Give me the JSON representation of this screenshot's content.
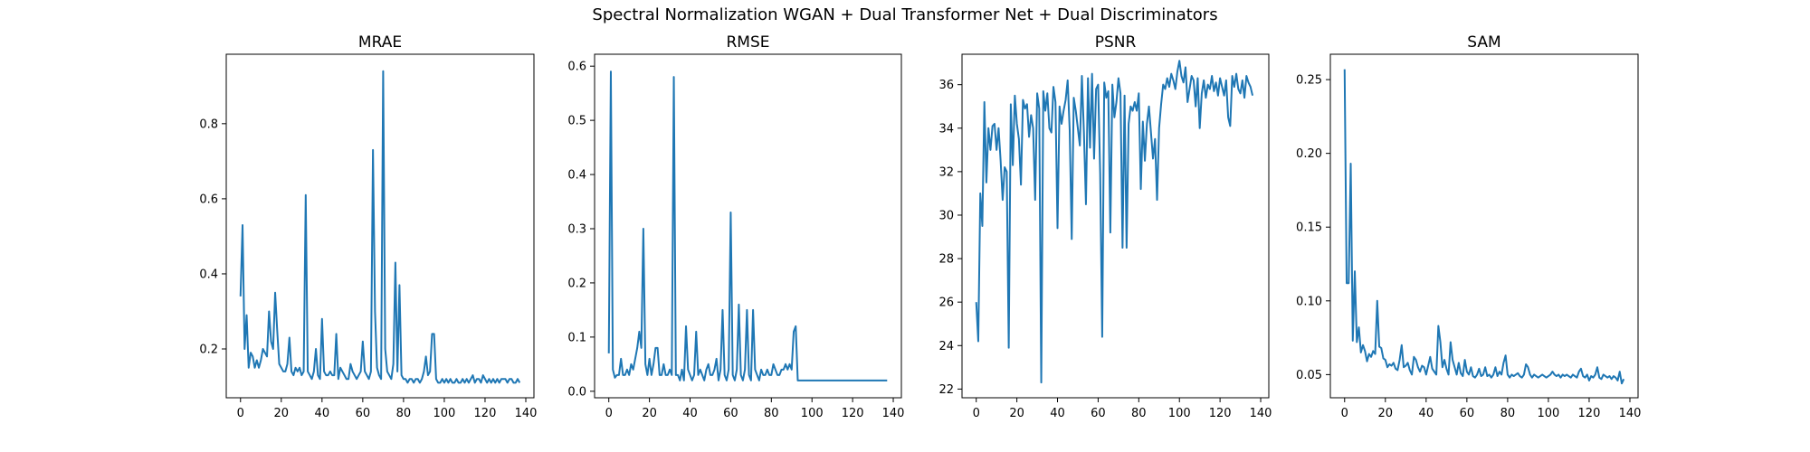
{
  "figure": {
    "title": "Spectral Normalization WGAN + Dual Transformer Net + Dual Discriminators",
    "line_color": "#1f77b4"
  },
  "chart_data": [
    {
      "type": "line",
      "title": "MRAE",
      "xlabel": "",
      "ylabel": "",
      "xlim": [
        -7,
        144
      ],
      "ylim": [
        0.07,
        0.985
      ],
      "x_ticks": [
        0,
        20,
        40,
        60,
        80,
        100,
        120,
        140
      ],
      "y_ticks": [
        0.2,
        0.4,
        0.6,
        0.8
      ],
      "x_tick_labels": [
        "0",
        "20",
        "40",
        "60",
        "80",
        "100",
        "120",
        "140"
      ],
      "y_tick_labels": [
        "0.2",
        "0.4",
        "0.6",
        "0.8"
      ],
      "grid": false,
      "series": [
        {
          "x_start": 0,
          "values": [
            0.34,
            0.53,
            0.2,
            0.29,
            0.15,
            0.19,
            0.18,
            0.15,
            0.17,
            0.15,
            0.17,
            0.2,
            0.19,
            0.18,
            0.3,
            0.22,
            0.2,
            0.35,
            0.25,
            0.16,
            0.15,
            0.14,
            0.14,
            0.16,
            0.23,
            0.14,
            0.13,
            0.15,
            0.14,
            0.15,
            0.13,
            0.14,
            0.61,
            0.14,
            0.13,
            0.12,
            0.14,
            0.2,
            0.13,
            0.12,
            0.28,
            0.14,
            0.13,
            0.13,
            0.14,
            0.13,
            0.13,
            0.24,
            0.12,
            0.15,
            0.14,
            0.13,
            0.12,
            0.12,
            0.16,
            0.14,
            0.13,
            0.12,
            0.13,
            0.14,
            0.22,
            0.14,
            0.13,
            0.12,
            0.14,
            0.73,
            0.3,
            0.15,
            0.13,
            0.12,
            0.94,
            0.2,
            0.14,
            0.13,
            0.12,
            0.16,
            0.43,
            0.14,
            0.37,
            0.13,
            0.12,
            0.12,
            0.11,
            0.12,
            0.12,
            0.11,
            0.12,
            0.12,
            0.11,
            0.12,
            0.14,
            0.18,
            0.13,
            0.14,
            0.24,
            0.24,
            0.12,
            0.11,
            0.11,
            0.12,
            0.11,
            0.12,
            0.11,
            0.12,
            0.11,
            0.11,
            0.12,
            0.11,
            0.11,
            0.12,
            0.11,
            0.12,
            0.11,
            0.12,
            0.13,
            0.11,
            0.12,
            0.12,
            0.11,
            0.13,
            0.12,
            0.11,
            0.12,
            0.11,
            0.12,
            0.11,
            0.12,
            0.11,
            0.12,
            0.12,
            0.12,
            0.11,
            0.12,
            0.12,
            0.11,
            0.11,
            0.12,
            0.11
          ]
        }
      ]
    },
    {
      "type": "line",
      "title": "RMSE",
      "xlabel": "",
      "ylabel": "",
      "xlim": [
        -7,
        144
      ],
      "ylim": [
        -0.012,
        0.622
      ],
      "x_ticks": [
        0,
        20,
        40,
        60,
        80,
        100,
        120,
        140
      ],
      "y_ticks": [
        0.0,
        0.1,
        0.2,
        0.3,
        0.4,
        0.5,
        0.6
      ],
      "x_tick_labels": [
        "0",
        "20",
        "40",
        "60",
        "80",
        "100",
        "120",
        "140"
      ],
      "y_tick_labels": [
        "0.0",
        "0.1",
        "0.2",
        "0.3",
        "0.4",
        "0.5",
        "0.6"
      ],
      "grid": false,
      "series": [
        {
          "x_start": 0,
          "values": [
            0.07,
            0.59,
            0.04,
            0.025,
            0.03,
            0.03,
            0.06,
            0.03,
            0.03,
            0.04,
            0.03,
            0.05,
            0.04,
            0.06,
            0.08,
            0.11,
            0.08,
            0.3,
            0.05,
            0.03,
            0.06,
            0.03,
            0.05,
            0.08,
            0.08,
            0.03,
            0.03,
            0.05,
            0.03,
            0.03,
            0.04,
            0.03,
            0.58,
            0.03,
            0.03,
            0.02,
            0.04,
            0.02,
            0.12,
            0.04,
            0.03,
            0.02,
            0.03,
            0.11,
            0.03,
            0.04,
            0.03,
            0.02,
            0.04,
            0.05,
            0.03,
            0.03,
            0.04,
            0.06,
            0.02,
            0.04,
            0.15,
            0.03,
            0.02,
            0.04,
            0.33,
            0.03,
            0.02,
            0.04,
            0.16,
            0.03,
            0.02,
            0.04,
            0.15,
            0.03,
            0.02,
            0.15,
            0.04,
            0.03,
            0.02,
            0.04,
            0.03,
            0.03,
            0.04,
            0.03,
            0.03,
            0.05,
            0.04,
            0.03,
            0.03,
            0.04,
            0.04,
            0.05,
            0.04,
            0.05,
            0.04,
            0.11,
            0.12,
            0.02,
            0.02,
            0.02,
            0.02,
            0.02,
            0.02,
            0.02,
            0.02,
            0.02,
            0.02,
            0.02,
            0.02,
            0.02,
            0.02,
            0.02,
            0.02,
            0.02,
            0.02,
            0.02,
            0.02,
            0.02,
            0.02,
            0.02,
            0.02,
            0.02,
            0.02,
            0.02,
            0.02,
            0.02,
            0.02,
            0.02,
            0.02,
            0.02,
            0.02,
            0.02,
            0.02,
            0.02,
            0.02,
            0.02,
            0.02,
            0.02,
            0.02,
            0.02,
            0.02,
            0.02
          ]
        }
      ]
    },
    {
      "type": "line",
      "title": "PSNR",
      "xlabel": "",
      "ylabel": "",
      "xlim": [
        -7,
        144
      ],
      "ylim": [
        21.6,
        37.4
      ],
      "x_ticks": [
        0,
        20,
        40,
        60,
        80,
        100,
        120,
        140
      ],
      "y_ticks": [
        22,
        24,
        26,
        28,
        30,
        32,
        34,
        36
      ],
      "x_tick_labels": [
        "0",
        "20",
        "40",
        "60",
        "80",
        "100",
        "120",
        "140"
      ],
      "y_tick_labels": [
        "22",
        "24",
        "26",
        "28",
        "30",
        "32",
        "34",
        "36"
      ],
      "grid": false,
      "series": [
        {
          "x_start": 0,
          "values": [
            26.0,
            24.2,
            31.0,
            29.5,
            35.2,
            31.5,
            34.0,
            33.0,
            34.1,
            34.2,
            33.0,
            34.0,
            32.5,
            30.7,
            32.2,
            32.0,
            23.9,
            35.1,
            32.3,
            35.5,
            34.2,
            33.5,
            31.4,
            35.3,
            34.9,
            35.1,
            33.6,
            34.6,
            34.0,
            30.7,
            35.6,
            34.9,
            22.3,
            35.7,
            34.8,
            35.6,
            34.0,
            33.8,
            35.9,
            35.2,
            29.4,
            35.0,
            34.2,
            34.8,
            35.3,
            36.2,
            33.9,
            28.9,
            35.4,
            34.8,
            34.0,
            33.2,
            36.4,
            33.8,
            30.5,
            36.3,
            33.1,
            36.5,
            32.6,
            35.8,
            36.0,
            31.9,
            24.4,
            36.1,
            35.4,
            35.7,
            29.2,
            36.0,
            34.5,
            35.2,
            36.3,
            35.6,
            28.5,
            35.5,
            28.5,
            34.2,
            35.0,
            34.8,
            35.2,
            34.8,
            35.6,
            31.2,
            34.3,
            32.5,
            34.2,
            35.0,
            33.8,
            32.6,
            33.5,
            30.7,
            34.0,
            35.1,
            36.0,
            35.8,
            36.3,
            35.9,
            36.5,
            36.2,
            35.8,
            36.6,
            37.1,
            36.4,
            36.1,
            36.8,
            35.2,
            35.8,
            36.4,
            36.2,
            35.0,
            36.3,
            34.0,
            35.6,
            36.2,
            35.4,
            36.0,
            35.8,
            36.4,
            35.7,
            36.1,
            35.5,
            36.3,
            35.9,
            35.5,
            36.2,
            34.5,
            34.1,
            36.4,
            35.9,
            36.5,
            35.8,
            35.6,
            36.2,
            35.4,
            36.4,
            36.1,
            35.9,
            35.5
          ]
        }
      ]
    },
    {
      "type": "line",
      "title": "SAM",
      "xlabel": "",
      "ylabel": "",
      "xlim": [
        -7,
        144
      ],
      "ylim": [
        0.0343,
        0.2672
      ],
      "x_ticks": [
        0,
        20,
        40,
        60,
        80,
        100,
        120,
        140
      ],
      "y_ticks": [
        0.05,
        0.1,
        0.15,
        0.2,
        0.25
      ],
      "x_tick_labels": [
        "0",
        "20",
        "40",
        "60",
        "80",
        "100",
        "120",
        "140"
      ],
      "y_tick_labels": [
        "0.05",
        "0.10",
        "0.15",
        "0.20",
        "0.25"
      ],
      "grid": false,
      "series": [
        {
          "x_start": 0,
          "values": [
            0.257,
            0.112,
            0.112,
            0.193,
            0.073,
            0.12,
            0.072,
            0.082,
            0.065,
            0.07,
            0.066,
            0.059,
            0.064,
            0.062,
            0.066,
            0.064,
            0.1,
            0.069,
            0.068,
            0.061,
            0.06,
            0.055,
            0.057,
            0.056,
            0.058,
            0.054,
            0.053,
            0.06,
            0.07,
            0.055,
            0.056,
            0.058,
            0.053,
            0.05,
            0.062,
            0.06,
            0.055,
            0.052,
            0.056,
            0.055,
            0.05,
            0.056,
            0.062,
            0.054,
            0.052,
            0.05,
            0.083,
            0.072,
            0.055,
            0.06,
            0.054,
            0.05,
            0.072,
            0.06,
            0.055,
            0.05,
            0.058,
            0.051,
            0.049,
            0.06,
            0.052,
            0.05,
            0.055,
            0.049,
            0.048,
            0.05,
            0.054,
            0.049,
            0.05,
            0.055,
            0.049,
            0.05,
            0.048,
            0.05,
            0.055,
            0.049,
            0.052,
            0.05,
            0.058,
            0.063,
            0.05,
            0.048,
            0.05,
            0.049,
            0.05,
            0.051,
            0.049,
            0.048,
            0.05,
            0.057,
            0.055,
            0.05,
            0.048,
            0.05,
            0.049,
            0.048,
            0.049,
            0.05,
            0.049,
            0.048,
            0.049,
            0.05,
            0.052,
            0.05,
            0.049,
            0.05,
            0.048,
            0.05,
            0.049,
            0.05,
            0.049,
            0.048,
            0.05,
            0.049,
            0.048,
            0.052,
            0.054,
            0.049,
            0.048,
            0.05,
            0.046,
            0.049,
            0.048,
            0.05,
            0.055,
            0.048,
            0.047,
            0.05,
            0.049,
            0.048,
            0.049,
            0.047,
            0.049,
            0.048,
            0.046,
            0.052,
            0.044,
            0.047
          ]
        }
      ]
    }
  ]
}
